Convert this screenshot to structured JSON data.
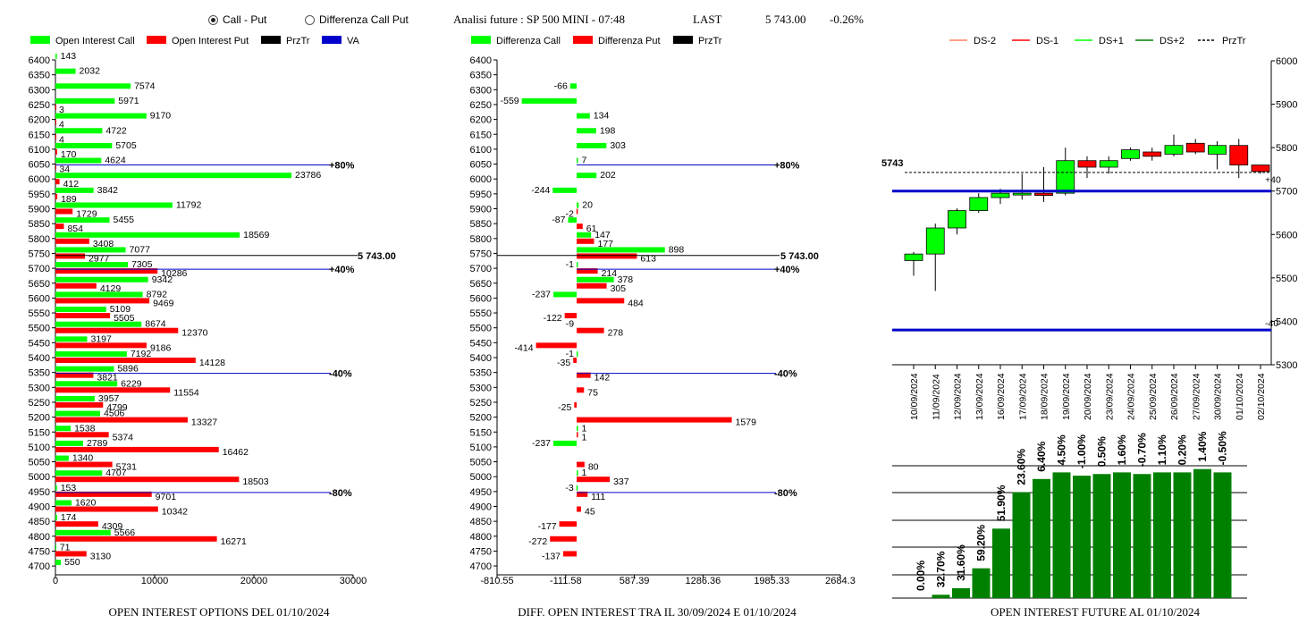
{
  "header": {
    "radio_call_put": "Call - Put",
    "radio_differenza": "Differenza Call Put",
    "analysis_title": "Analisi future : SP 500 MINI - 07:48",
    "last_label": "LAST",
    "last_value": "5 743.00",
    "last_change": "-0.26%"
  },
  "colors": {
    "green": "#00ff00",
    "red": "#ff0000",
    "dark_green": "#008000",
    "blue": "#0000cc",
    "black": "#000000"
  },
  "chart_data": [
    {
      "type": "bar",
      "id": "oi",
      "title": "OPEN INTEREST OPTIONS DEL 01/10/2024",
      "legend": [
        {
          "name": "Open Interest Call",
          "color": "#00ff00"
        },
        {
          "name": "Open Interest Put",
          "color": "#ff0000"
        },
        {
          "name": "PrzTr",
          "color": "#000000"
        },
        {
          "name": "VA",
          "color": "#0000cc"
        }
      ],
      "strikes": [
        "6400",
        "6350",
        "6300",
        "6250",
        "6200",
        "6150",
        "6100",
        "6050",
        "6000",
        "5950",
        "5900",
        "5850",
        "5800",
        "5750",
        "5700",
        "5650",
        "5600",
        "5550",
        "5500",
        "5450",
        "5400",
        "5350",
        "5300",
        "5250",
        "5200",
        "5150",
        "5100",
        "5050",
        "5000",
        "4950",
        "4900",
        "4850",
        "4800",
        "4750",
        "4700"
      ],
      "calls": [
        143,
        2032,
        7574,
        5971,
        9170,
        4722,
        5705,
        4624,
        23786,
        3842,
        11792,
        5455,
        18569,
        7077,
        7305,
        9342,
        8792,
        5109,
        8674,
        3197,
        7192,
        5896,
        6229,
        3957,
        4506,
        1538,
        2789,
        1340,
        4707,
        153,
        1620,
        174,
        5566,
        71,
        550
      ],
      "puts": [
        null,
        null,
        null,
        3,
        4,
        4,
        170,
        34,
        412,
        189,
        1729,
        854,
        3408,
        2977,
        10286,
        4129,
        9469,
        5505,
        12370,
        9186,
        14128,
        3821,
        11554,
        4799,
        13327,
        5374,
        16462,
        5731,
        18503,
        9701,
        10342,
        4309,
        16271,
        3130,
        null
      ],
      "xticks": [
        "0",
        "10000",
        "20000",
        "30000"
      ],
      "xlim": [
        0,
        30000
      ],
      "lines": [
        {
          "strike": "6050",
          "label": "+80%"
        },
        {
          "strike": "5700",
          "label": "+40%"
        },
        {
          "strike": "5350",
          "label": "-40%"
        },
        {
          "strike": "4950",
          "label": "-80%"
        }
      ],
      "price_line": {
        "value": 5743,
        "label": "5 743.00"
      }
    },
    {
      "type": "bar",
      "id": "diff",
      "title": "DIFF. OPEN INTEREST TRA IL 30/09/2024 E 01/10/2024",
      "legend": [
        {
          "name": "Differenza Call",
          "color": "#00ff00"
        },
        {
          "name": "Differenza Put",
          "color": "#ff0000"
        },
        {
          "name": "PrzTr",
          "color": "#000000"
        }
      ],
      "strikes": [
        "6400",
        "6350",
        "6300",
        "6250",
        "6200",
        "6150",
        "6100",
        "6050",
        "6000",
        "5950",
        "5900",
        "5850",
        "5800",
        "5750",
        "5700",
        "5650",
        "5600",
        "5550",
        "5500",
        "5450",
        "5400",
        "5350",
        "5300",
        "5250",
        "5200",
        "5150",
        "5100",
        "5050",
        "5000",
        "4950",
        "4900",
        "4850",
        "4800",
        "4750",
        "4700"
      ],
      "calls": [
        null,
        null,
        -66,
        -559,
        134,
        198,
        303,
        7,
        202,
        -244,
        20,
        -87,
        147,
        898,
        -1,
        378,
        -237,
        null,
        null,
        null,
        -1,
        null,
        null,
        null,
        null,
        1,
        -237,
        null,
        1,
        -3,
        null,
        null,
        null,
        null,
        null
      ],
      "puts": [
        null,
        null,
        null,
        null,
        null,
        null,
        null,
        null,
        null,
        null,
        -2,
        61,
        177,
        613,
        214,
        305,
        484,
        -122,
        278,
        -414,
        -35,
        142,
        75,
        -25,
        1579,
        1,
        null,
        80,
        337,
        111,
        45,
        -177,
        -272,
        -137,
        null
      ],
      "call_labels": [
        "",
        "",
        "-66",
        "-559",
        "134",
        "198",
        "303",
        "7",
        "202",
        "-244",
        "20",
        "-87",
        "147",
        "898",
        "-1",
        "378",
        "-237",
        "",
        "",
        "",
        "-1",
        "",
        "",
        "",
        "",
        "1",
        "-237",
        "",
        "1",
        "-3",
        "",
        "",
        "",
        "",
        ""
      ],
      "put_labels": [
        "",
        "",
        "",
        "",
        "",
        "",
        "",
        "",
        "",
        "",
        "-2",
        "61",
        "177",
        "613",
        "214",
        "305",
        "484",
        "-122",
        "278",
        "-414",
        "-35",
        "142",
        "75",
        "-25",
        "1579",
        "1",
        "",
        "80",
        "337",
        "111",
        "45",
        "-177",
        "-272",
        "-137",
        ""
      ],
      "put_side_labels": [
        "",
        "",
        "",
        "",
        "",
        "",
        "",
        "",
        "",
        "",
        "",
        "",
        "",
        "",
        "",
        "",
        "",
        "",
        "-9",
        "",
        "",
        "",
        "",
        "",
        "",
        "",
        "",
        "",
        "",
        "",
        "",
        "",
        "",
        "",
        ""
      ],
      "xticks": [
        "-810.55",
        "-111.58",
        "587.39",
        "1286.36",
        "1985.33",
        "2684.3"
      ],
      "xlim": [
        -810.55,
        2684.3
      ],
      "lines": [
        {
          "strike": "6050",
          "label": "+80%"
        },
        {
          "strike": "5700",
          "label": "+40%"
        },
        {
          "strike": "5350",
          "label": "-40%"
        },
        {
          "strike": "4950",
          "label": "-80%"
        }
      ],
      "price_line": {
        "value": 5743,
        "label": "5 743.00"
      }
    },
    {
      "type": "candlestick",
      "id": "candles",
      "legend": [
        {
          "name": "DS-2",
          "color": "#ff8060",
          "style": "solid"
        },
        {
          "name": "DS-1",
          "color": "#ff0000",
          "style": "solid"
        },
        {
          "name": "DS+1",
          "color": "#00ff00",
          "style": "solid"
        },
        {
          "name": "DS+2",
          "color": "#008000",
          "style": "solid"
        },
        {
          "name": "PrzTr",
          "color": "#000000",
          "style": "dashed"
        }
      ],
      "dates": [
        "10/09/2024",
        "11/09/2024",
        "12/09/2024",
        "13/09/2024",
        "16/09/2024",
        "17/09/2024",
        "18/09/2024",
        "19/09/2024",
        "20/09/2024",
        "23/09/2024",
        "24/09/2024",
        "25/09/2024",
        "26/09/2024",
        "27/09/2024",
        "30/09/2024",
        "01/10/2024",
        "02/10/2024"
      ],
      "open": [
        5540,
        5555,
        5615,
        5655,
        5685,
        5695,
        5695,
        5695,
        5770,
        5755,
        5775,
        5790,
        5785,
        5810,
        5785,
        5805,
        5760
      ],
      "close": [
        5555,
        5615,
        5655,
        5685,
        5695,
        5695,
        5690,
        5770,
        5755,
        5770,
        5795,
        5780,
        5805,
        5790,
        5805,
        5760,
        5745
      ],
      "high": [
        5560,
        5625,
        5660,
        5695,
        5705,
        5740,
        5755,
        5800,
        5780,
        5780,
        5800,
        5800,
        5830,
        5820,
        5815,
        5820,
        5760
      ],
      "low": [
        5505,
        5470,
        5600,
        5650,
        5670,
        5680,
        5675,
        5690,
        5730,
        5740,
        5770,
        5770,
        5780,
        5785,
        5750,
        5730,
        5740
      ],
      "ylim": [
        5300,
        6000
      ],
      "yticks": [
        "5300",
        "5400",
        "5500",
        "5600",
        "5700",
        "5800",
        "5900",
        "6000"
      ],
      "price": {
        "value": 5743,
        "label": "5743"
      },
      "blue_lines": [
        5700,
        5380
      ],
      "right_labels": [
        "+40",
        "-40"
      ]
    },
    {
      "type": "bar",
      "id": "futures",
      "title": "OPEN INTEREST FUTURE AL 01/10/2024",
      "values": [
        0.0,
        1.0,
        3.0,
        9.0,
        21.0,
        32.0,
        36.0,
        38.0,
        37.0,
        37.5,
        38.0,
        37.5,
        38.0,
        38.0,
        39.0,
        38.0
      ],
      "labels": [
        "0.00%",
        "32.70%",
        "31.60%",
        "59.20%",
        "51.90%",
        "23.60%",
        "6.40%",
        "4.50%",
        "-1.00%",
        "0.50%",
        "1.60%",
        "-0.70%",
        "1.10%",
        "0.20%",
        "1.40%",
        "-0.50%"
      ]
    }
  ]
}
